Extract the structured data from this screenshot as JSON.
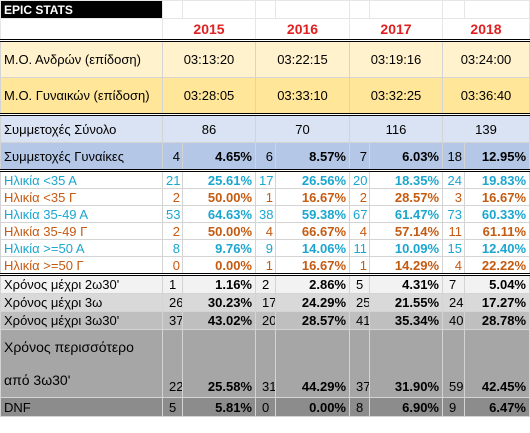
{
  "header": {
    "title": "EPIC STATS",
    "years": [
      2015,
      2016,
      2017,
      2018
    ]
  },
  "averages": [
    {
      "label": "Μ.Ο. Ανδρών (επίδοση)",
      "values": [
        "03:13:20",
        "03:22:15",
        "03:19:16",
        "03:24:00"
      ]
    },
    {
      "label": "Μ.Ο. Γυναικών (επίδοση)",
      "values": [
        "03:28:05",
        "03:33:10",
        "03:32:25",
        "03:36:40"
      ]
    }
  ],
  "participation": [
    {
      "label": "Συμμετοχές Σύνολο",
      "values": [
        86,
        70,
        116,
        139
      ]
    },
    {
      "label": "Συμμετοχές Γυναίκες",
      "counts": [
        4,
        6,
        7,
        18
      ],
      "percents": [
        "4.65%",
        "8.57%",
        "6.03%",
        "12.95%"
      ]
    }
  ],
  "age_groups": [
    {
      "label": "Ηλικία <35 Α",
      "counts": [
        21,
        17,
        20,
        24
      ],
      "percents": [
        "25.61%",
        "26.56%",
        "18.35%",
        "19.83%"
      ]
    },
    {
      "label": "Ηλικία <35 Γ",
      "counts": [
        2,
        1,
        2,
        3
      ],
      "percents": [
        "50.00%",
        "16.67%",
        "28.57%",
        "16.67%"
      ]
    },
    {
      "label": "Ηλικία 35-49 Α",
      "counts": [
        53,
        38,
        67,
        73
      ],
      "percents": [
        "64.63%",
        "59.38%",
        "61.47%",
        "60.33%"
      ]
    },
    {
      "label": "Ηλικία 35-49 Γ",
      "counts": [
        2,
        4,
        4,
        11
      ],
      "percents": [
        "50.00%",
        "66.67%",
        "57.14%",
        "61.11%"
      ]
    },
    {
      "label": "Ηλικία >=50 Α",
      "counts": [
        8,
        9,
        11,
        15
      ],
      "percents": [
        "9.76%",
        "14.06%",
        "10.09%",
        "12.40%"
      ]
    },
    {
      "label": "Ηλικία >=50 Γ",
      "counts": [
        0,
        1,
        1,
        4
      ],
      "percents": [
        "0.00%",
        "16.67%",
        "14.29%",
        "22.22%"
      ]
    }
  ],
  "finish_times": [
    {
      "label": "Χρόνος μέχρι 2ω30'",
      "counts": [
        1,
        2,
        5,
        7
      ],
      "percents": [
        "1.16%",
        "2.86%",
        "4.31%",
        "5.04%"
      ]
    },
    {
      "label": "Χρόνος μέχρι 3ω",
      "counts": [
        26,
        17,
        25,
        24
      ],
      "percents": [
        "30.23%",
        "24.29%",
        "21.55%",
        "17.27%"
      ]
    },
    {
      "label": "Χρόνος μέχρι 3ω30'",
      "counts": [
        37,
        20,
        41,
        40
      ],
      "percents": [
        "43.02%",
        "28.57%",
        "35.34%",
        "28.78%"
      ]
    },
    {
      "label": "Χρόνος περισσότερο από 3ω30'",
      "counts": [
        22,
        31,
        37,
        59
      ],
      "percents": [
        "25.58%",
        "44.29%",
        "31.90%",
        "42.45%"
      ]
    },
    {
      "label": "DNF",
      "counts": [
        5,
        0,
        8,
        9
      ],
      "percents": [
        "5.81%",
        "0.00%",
        "6.90%",
        "6.47%"
      ]
    }
  ]
}
